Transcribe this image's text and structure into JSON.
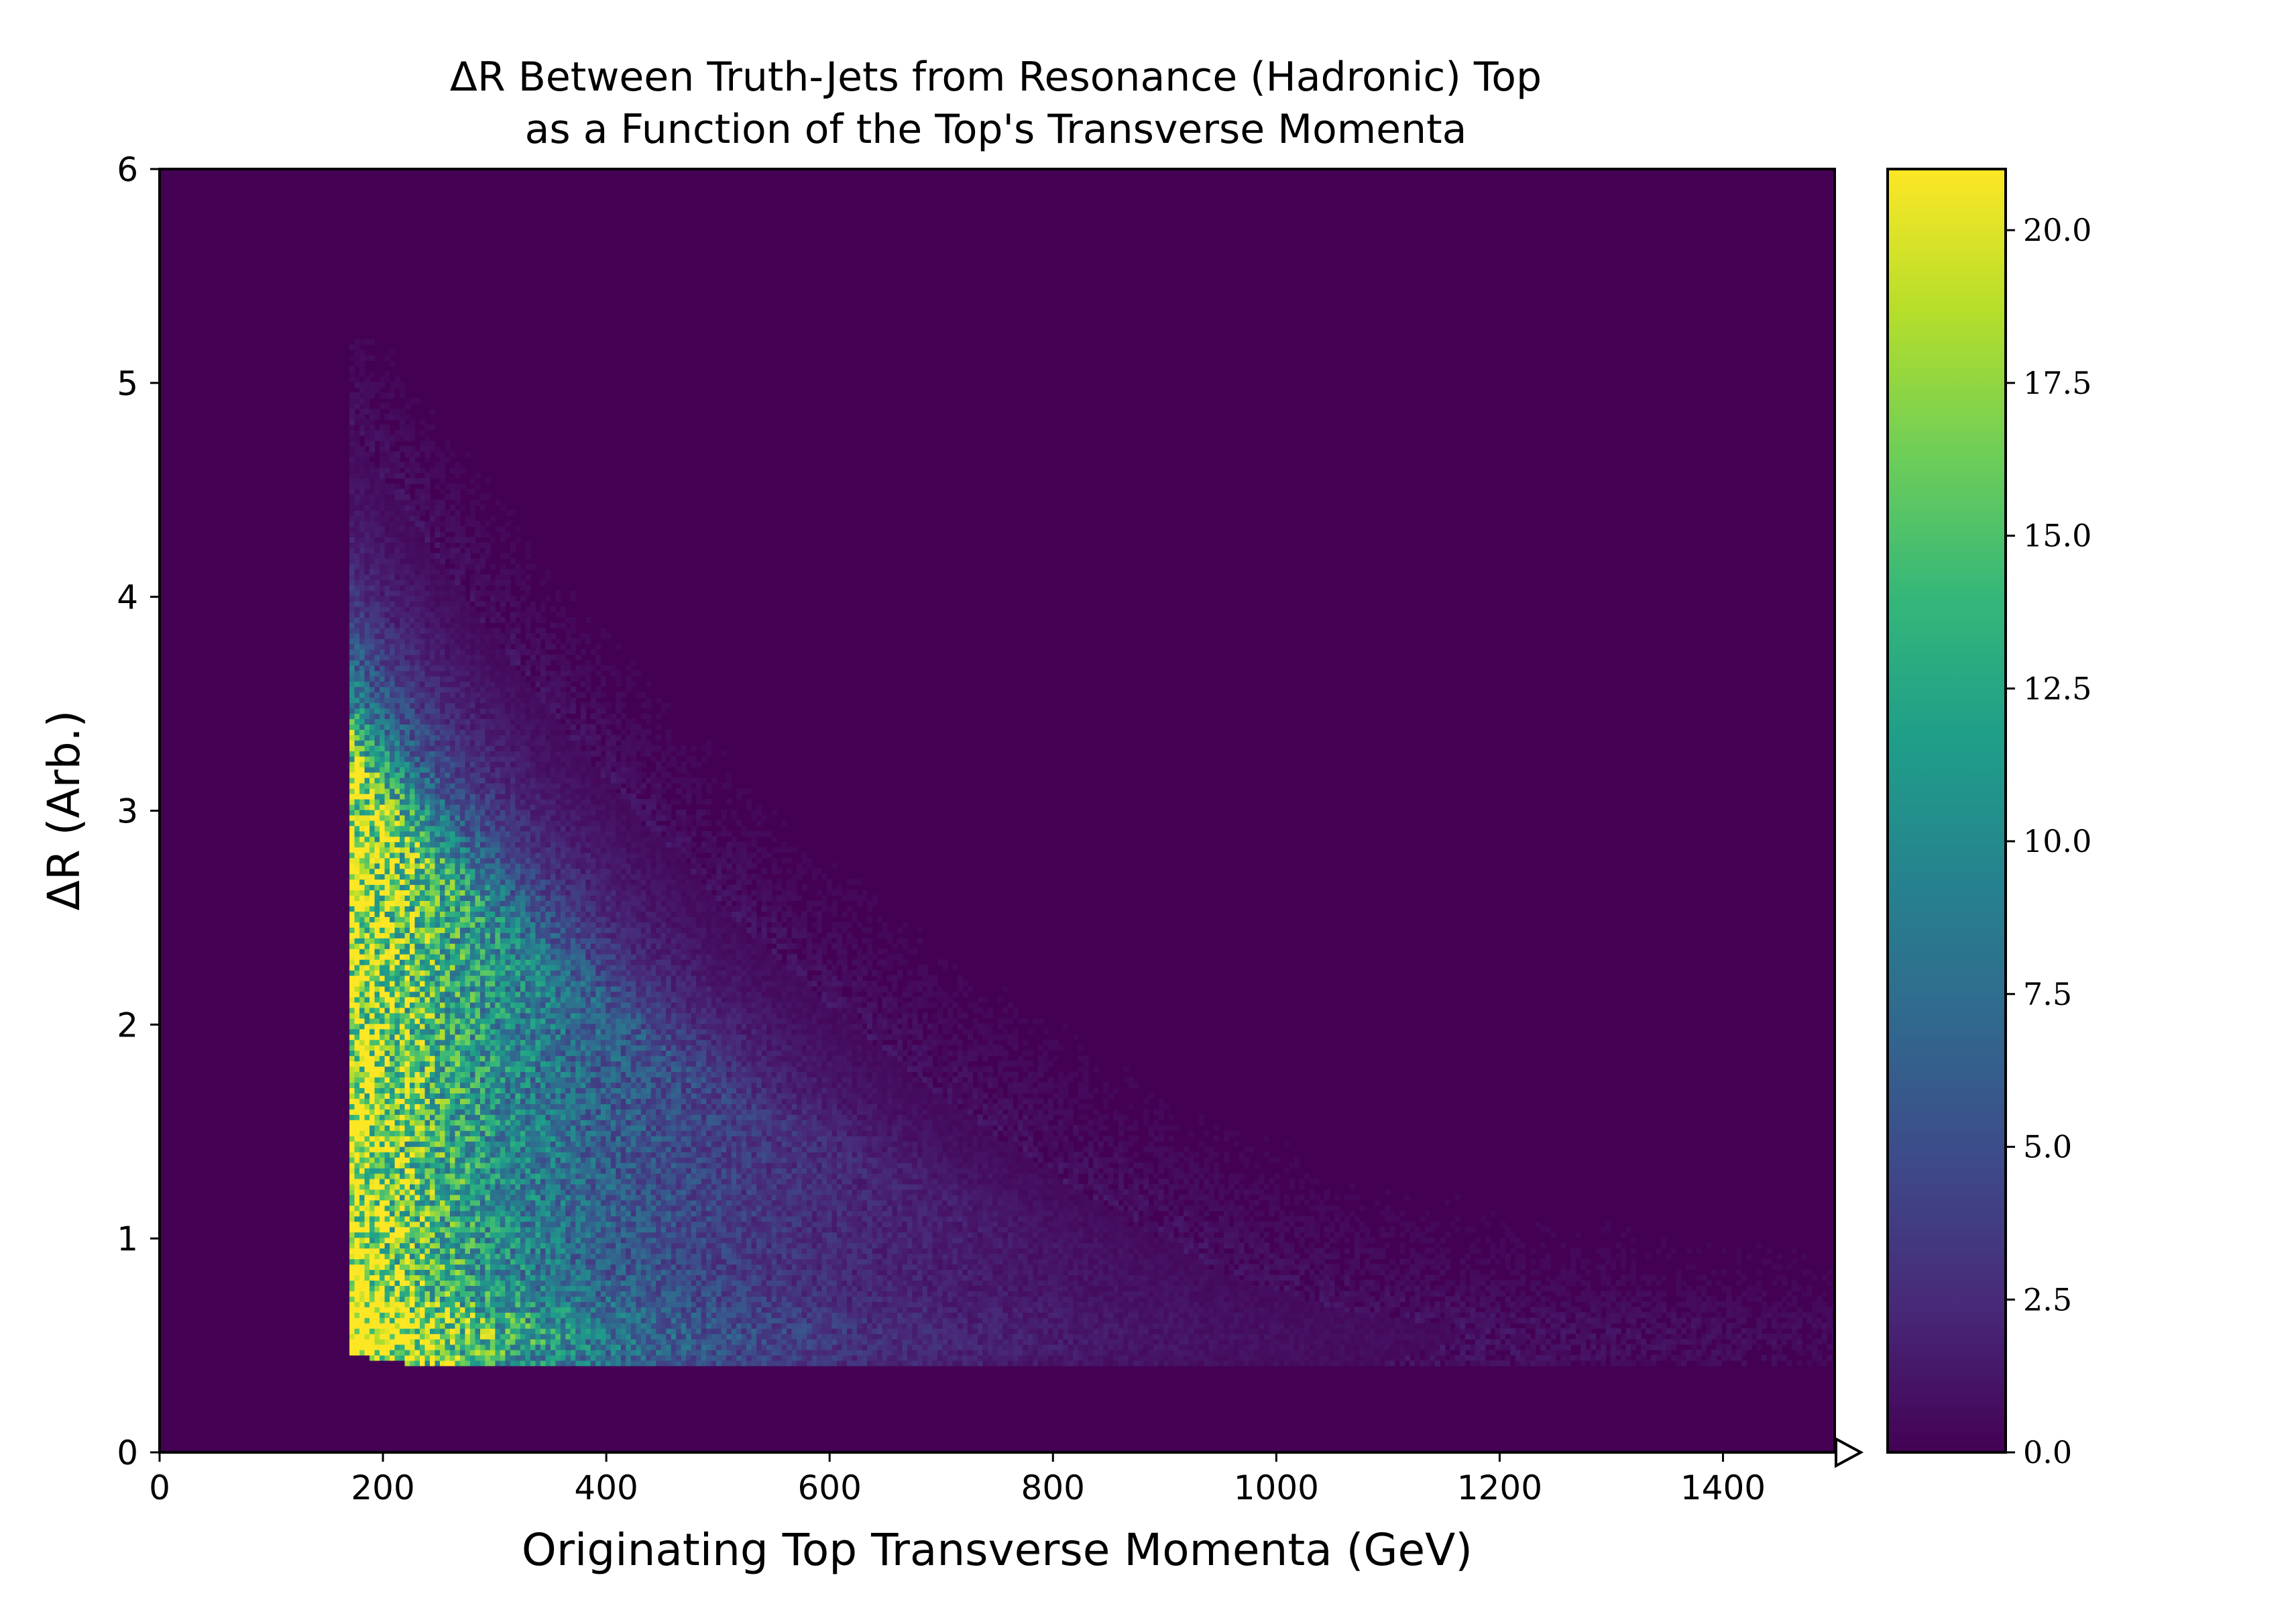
{
  "chart_data": {
    "type": "heatmap",
    "title": [
      "ΔR Between Truth-Jets from Resonance (Hadronic) Top",
      "as a Function of the Top's Transverse Momenta"
    ],
    "xlabel": "Originating Top Transverse Momenta (GeV)",
    "ylabel": "ΔR (Arb.)",
    "xlim": [
      0,
      1500
    ],
    "ylim": [
      0,
      6
    ],
    "x_ticks": [
      "0",
      "200",
      "400",
      "600",
      "800",
      "1000",
      "1200",
      "1400"
    ],
    "y_ticks": [
      "0",
      "1",
      "2",
      "3",
      "4",
      "5",
      "6"
    ],
    "colorbar": {
      "colormap": "viridis",
      "range": [
        0,
        21
      ],
      "extend": "max",
      "ticks": [
        "0.0",
        "2.5",
        "5.0",
        "7.5",
        "10.0",
        "12.5",
        "15.0",
        "17.5",
        "20.0"
      ]
    },
    "colors": {
      "background": "#440154",
      "viridis": [
        "#440154",
        "#482878",
        "#3e4989",
        "#31688e",
        "#26828e",
        "#1f9e89",
        "#35b779",
        "#6ece58",
        "#b5de2b",
        "#fde725"
      ]
    },
    "grid": false
  }
}
